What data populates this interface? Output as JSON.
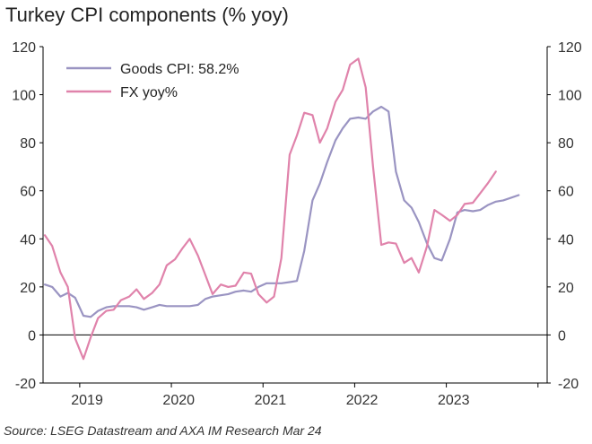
{
  "chart_data": {
    "type": "line",
    "title": "Turkey CPI components (% yoy)",
    "source": "Source: LSEG Datastream and AXA IM Research Mar 24",
    "ylim": [
      -20,
      120
    ],
    "yticks": [
      -20,
      0,
      20,
      40,
      60,
      80,
      100,
      120
    ],
    "ytick_labels": [
      "-20",
      "0",
      "20",
      "40",
      "60",
      "80",
      "100",
      "120"
    ],
    "xlim": [
      2018.6,
      2024.1
    ],
    "xtick_labels": [
      {
        "x": 2019.08,
        "label": "2019"
      },
      {
        "x": 2020.08,
        "label": "2020"
      },
      {
        "x": 2021.08,
        "label": "2021"
      },
      {
        "x": 2022.08,
        "label": "2022"
      },
      {
        "x": 2023.08,
        "label": "2023"
      }
    ],
    "grid": false,
    "legend_position": "top-left",
    "series": [
      {
        "name": "Goods CPI: 58.2%",
        "color": "#9a94c2",
        "points": [
          [
            2018.62,
            21
          ],
          [
            2018.7,
            20
          ],
          [
            2018.79,
            16
          ],
          [
            2018.87,
            17.5
          ],
          [
            2018.95,
            15.5
          ],
          [
            2019.04,
            8
          ],
          [
            2019.12,
            7.5
          ],
          [
            2019.2,
            10
          ],
          [
            2019.29,
            11.5
          ],
          [
            2019.37,
            12
          ],
          [
            2019.45,
            12
          ],
          [
            2019.54,
            12
          ],
          [
            2019.62,
            11.5
          ],
          [
            2019.7,
            10.5
          ],
          [
            2019.79,
            11.5
          ],
          [
            2019.87,
            12.5
          ],
          [
            2019.95,
            12
          ],
          [
            2020.04,
            12
          ],
          [
            2020.12,
            12
          ],
          [
            2020.2,
            12
          ],
          [
            2020.29,
            12.5
          ],
          [
            2020.37,
            15
          ],
          [
            2020.45,
            16
          ],
          [
            2020.54,
            16.5
          ],
          [
            2020.62,
            17
          ],
          [
            2020.7,
            18
          ],
          [
            2020.79,
            18.5
          ],
          [
            2020.87,
            18
          ],
          [
            2020.95,
            20
          ],
          [
            2021.04,
            21.5
          ],
          [
            2021.12,
            21.5
          ],
          [
            2021.2,
            21.5
          ],
          [
            2021.29,
            22
          ],
          [
            2021.37,
            22.5
          ],
          [
            2021.45,
            35
          ],
          [
            2021.54,
            56
          ],
          [
            2021.62,
            63
          ],
          [
            2021.7,
            72
          ],
          [
            2021.79,
            81
          ],
          [
            2021.87,
            86
          ],
          [
            2021.95,
            90
          ],
          [
            2022.04,
            90.5
          ],
          [
            2022.12,
            90
          ],
          [
            2022.2,
            93
          ],
          [
            2022.29,
            95
          ],
          [
            2022.37,
            93
          ],
          [
            2022.45,
            68
          ],
          [
            2022.54,
            56
          ],
          [
            2022.62,
            53
          ],
          [
            2022.7,
            47
          ],
          [
            2022.79,
            38
          ],
          [
            2022.87,
            32
          ],
          [
            2022.95,
            31
          ],
          [
            2023.04,
            40
          ],
          [
            2023.12,
            51
          ],
          [
            2023.2,
            52
          ],
          [
            2023.29,
            51.5
          ],
          [
            2023.37,
            52
          ],
          [
            2023.45,
            54
          ],
          [
            2023.54,
            55.5
          ],
          [
            2023.62,
            56
          ],
          [
            2023.7,
            57
          ],
          [
            2023.79,
            58.2
          ]
        ]
      },
      {
        "name": "FX yoy%",
        "color": "#e083ab",
        "points": [
          [
            2018.62,
            41.5
          ],
          [
            2018.7,
            37
          ],
          [
            2018.79,
            26
          ],
          [
            2018.87,
            20
          ],
          [
            2018.95,
            -1.5
          ],
          [
            2019.04,
            -10
          ],
          [
            2019.12,
            -1
          ],
          [
            2019.2,
            7
          ],
          [
            2019.29,
            10
          ],
          [
            2019.37,
            10.5
          ],
          [
            2019.45,
            14.5
          ],
          [
            2019.54,
            16
          ],
          [
            2019.62,
            19
          ],
          [
            2019.7,
            15
          ],
          [
            2019.79,
            17.5
          ],
          [
            2019.87,
            21
          ],
          [
            2019.95,
            29
          ],
          [
            2020.04,
            31.5
          ],
          [
            2020.12,
            36
          ],
          [
            2020.2,
            40
          ],
          [
            2020.29,
            33
          ],
          [
            2020.37,
            25
          ],
          [
            2020.45,
            17
          ],
          [
            2020.54,
            21
          ],
          [
            2020.62,
            20
          ],
          [
            2020.7,
            20.5
          ],
          [
            2020.79,
            26
          ],
          [
            2020.87,
            25.5
          ],
          [
            2020.95,
            17
          ],
          [
            2021.04,
            13.5
          ],
          [
            2021.12,
            16
          ],
          [
            2021.2,
            32
          ],
          [
            2021.29,
            75
          ],
          [
            2021.37,
            83
          ],
          [
            2021.45,
            92.5
          ],
          [
            2021.54,
            91.5
          ],
          [
            2021.62,
            80
          ],
          [
            2021.7,
            86
          ],
          [
            2021.79,
            97
          ],
          [
            2021.87,
            102
          ],
          [
            2021.95,
            112.5
          ],
          [
            2022.04,
            115
          ],
          [
            2022.12,
            103
          ],
          [
            2022.2,
            70
          ],
          [
            2022.29,
            37.5
          ],
          [
            2022.37,
            38.5
          ],
          [
            2022.45,
            38
          ],
          [
            2022.54,
            30
          ],
          [
            2022.62,
            32
          ],
          [
            2022.7,
            26
          ],
          [
            2022.79,
            37
          ],
          [
            2022.87,
            52
          ],
          [
            2022.95,
            50
          ],
          [
            2023.04,
            47.5
          ],
          [
            2023.12,
            50
          ],
          [
            2023.2,
            54.5
          ],
          [
            2023.29,
            55
          ],
          [
            2023.37,
            59
          ],
          [
            2023.45,
            63
          ],
          [
            2023.54,
            68
          ]
        ]
      }
    ]
  }
}
